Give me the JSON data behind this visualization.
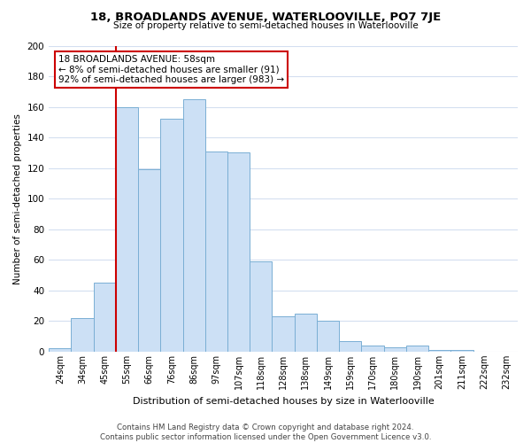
{
  "title": "18, BROADLANDS AVENUE, WATERLOOVILLE, PO7 7JE",
  "subtitle": "Size of property relative to semi-detached houses in Waterlooville",
  "xlabel": "Distribution of semi-detached houses by size in Waterlooville",
  "ylabel": "Number of semi-detached properties",
  "bar_color": "#cce0f5",
  "bar_edge_color": "#7aafd4",
  "marker_color": "#cc0000",
  "categories": [
    "24sqm",
    "34sqm",
    "45sqm",
    "55sqm",
    "66sqm",
    "76sqm",
    "86sqm",
    "97sqm",
    "107sqm",
    "118sqm",
    "128sqm",
    "138sqm",
    "149sqm",
    "159sqm",
    "170sqm",
    "180sqm",
    "190sqm",
    "201sqm",
    "211sqm",
    "222sqm",
    "232sqm"
  ],
  "values": [
    2,
    22,
    45,
    160,
    119,
    152,
    165,
    131,
    130,
    59,
    23,
    25,
    20,
    7,
    4,
    3,
    4,
    1,
    1,
    0
  ],
  "marker_index": 3,
  "annotation_title": "18 BROADLANDS AVENUE: 58sqm",
  "annotation_line1": "← 8% of semi-detached houses are smaller (91)",
  "annotation_line2": "92% of semi-detached houses are larger (983) →",
  "ylim": [
    0,
    200
  ],
  "yticks": [
    0,
    20,
    40,
    60,
    80,
    100,
    120,
    140,
    160,
    180,
    200
  ],
  "footer1": "Contains HM Land Registry data © Crown copyright and database right 2024.",
  "footer2": "Contains public sector information licensed under the Open Government Licence v3.0.",
  "bg_color": "#ffffff",
  "grid_color": "#d4dff0"
}
